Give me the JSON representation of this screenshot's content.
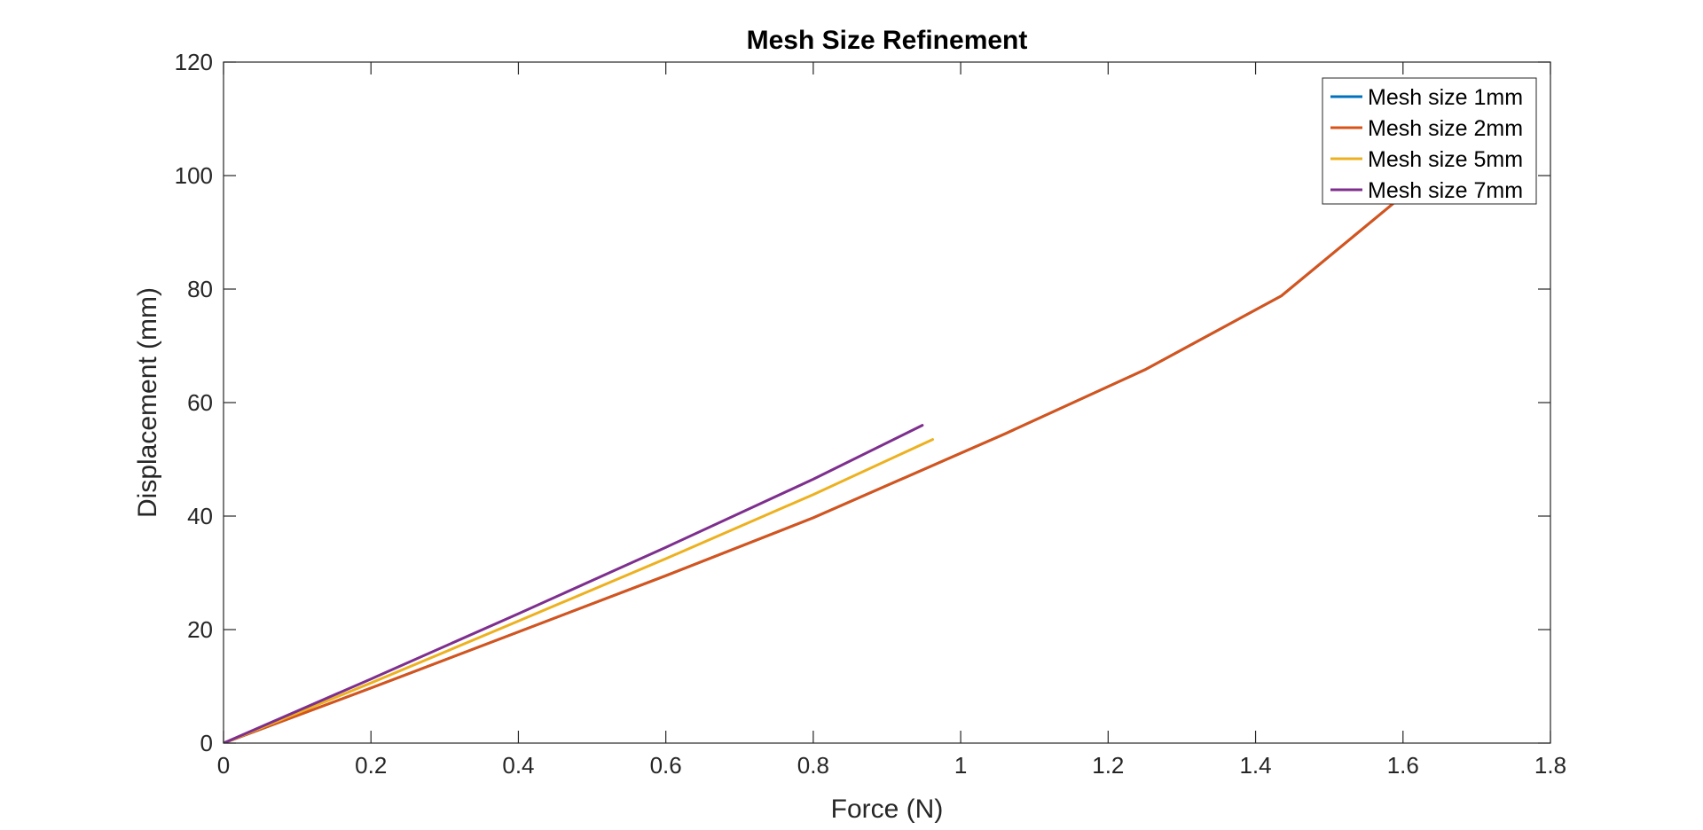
{
  "chart_data": {
    "type": "line",
    "title": "Mesh Size Refinement",
    "xlabel": "Force (N)",
    "ylabel": "Displacement (mm)",
    "xlim": [
      0,
      1.8
    ],
    "ylim": [
      0,
      120
    ],
    "xticks": [
      0,
      0.2,
      0.4,
      0.6,
      0.8,
      1,
      1.2,
      1.4,
      1.6,
      1.8
    ],
    "yticks": [
      0,
      20,
      40,
      60,
      80,
      100,
      120
    ],
    "xtick_labels": [
      "0",
      "0.2",
      "0.4",
      "0.6",
      "0.8",
      "1",
      "1.2",
      "1.4",
      "1.6",
      "1.8"
    ],
    "ytick_labels": [
      "0",
      "20",
      "40",
      "60",
      "80",
      "100",
      "120"
    ],
    "grid": false,
    "legend_position": "top-right",
    "series": [
      {
        "name": "Mesh size 1mm",
        "color": "#0072BD",
        "x": [
          0,
          0.2,
          0.4,
          0.6,
          0.8,
          1.06,
          1.25,
          1.435,
          1.6,
          1.63
        ],
        "y": [
          0,
          9.7,
          19.6,
          29.5,
          39.7,
          54.5,
          65.8,
          78.8,
          96.5,
          100
        ]
      },
      {
        "name": "Mesh size 2mm",
        "color": "#D95319",
        "x": [
          0,
          0.2,
          0.4,
          0.6,
          0.8,
          1.06,
          1.25,
          1.435,
          1.6,
          1.63
        ],
        "y": [
          0,
          9.7,
          19.6,
          29.5,
          39.7,
          54.5,
          65.8,
          78.8,
          96.5,
          100
        ]
      },
      {
        "name": "Mesh size 5mm",
        "color": "#EDB120",
        "x": [
          0,
          0.2,
          0.4,
          0.6,
          0.8,
          0.962
        ],
        "y": [
          0,
          10.6,
          21.5,
          32.5,
          43.8,
          53.5
        ]
      },
      {
        "name": "Mesh size 7mm",
        "color": "#7E2F8E",
        "x": [
          0,
          0.2,
          0.4,
          0.6,
          0.8,
          0.948
        ],
        "y": [
          0,
          11.3,
          22.8,
          34.5,
          46.5,
          56
        ]
      }
    ]
  }
}
